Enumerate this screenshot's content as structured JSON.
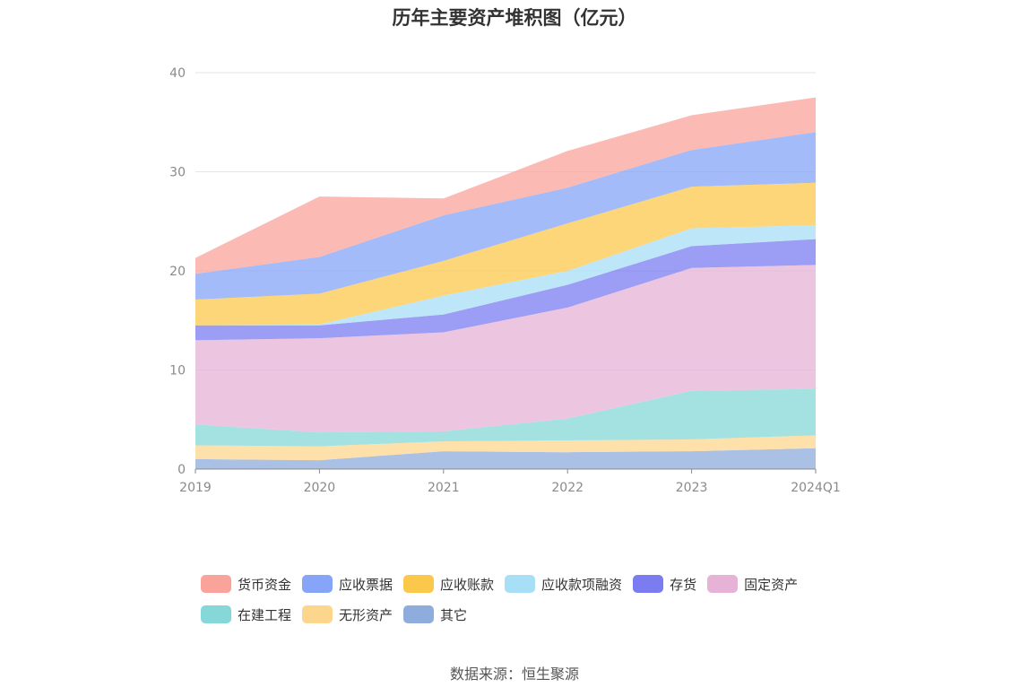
{
  "title": "历年主要资产堆积图（亿元）",
  "source": "数据来源：恒生聚源",
  "chart_data": {
    "type": "area",
    "stacked": true,
    "title": "历年主要资产堆积图（亿元）",
    "categories": [
      "2019",
      "2020",
      "2021",
      "2022",
      "2023",
      "2024Q1"
    ],
    "ylim": [
      0,
      40
    ],
    "yticks": [
      0,
      10,
      20,
      30,
      40
    ],
    "grid": true,
    "legend_position": "bottom",
    "series": [
      {
        "name": "其它",
        "color": "#8eacdc",
        "values": [
          1.0,
          0.9,
          1.8,
          1.7,
          1.8,
          2.1
        ]
      },
      {
        "name": "无形资产",
        "color": "#fdd68e",
        "values": [
          1.4,
          1.4,
          1.0,
          1.2,
          1.2,
          1.3
        ]
      },
      {
        "name": "在建工程",
        "color": "#86d8d8",
        "values": [
          2.1,
          1.4,
          1.0,
          2.2,
          4.9,
          4.7
        ]
      },
      {
        "name": "固定资产",
        "color": "#e6b3d6",
        "values": [
          8.5,
          9.5,
          10.0,
          11.2,
          12.4,
          12.5
        ]
      },
      {
        "name": "存货",
        "color": "#7b7cf0",
        "values": [
          1.5,
          1.3,
          1.8,
          2.3,
          2.2,
          2.6
        ]
      },
      {
        "name": "应收款项融资",
        "color": "#a7dff7",
        "values": [
          0,
          0.1,
          1.9,
          1.4,
          1.8,
          1.4
        ]
      },
      {
        "name": "应收账款",
        "color": "#fbc84c",
        "values": [
          2.6,
          3.1,
          3.5,
          4.8,
          4.2,
          4.3
        ]
      },
      {
        "name": "应收票据",
        "color": "#86a4f8",
        "values": [
          2.6,
          3.7,
          4.6,
          3.6,
          3.7,
          5.1
        ]
      },
      {
        "name": "货币资金",
        "color": "#f9a39b",
        "values": [
          1.6,
          6.1,
          1.7,
          3.7,
          3.5,
          3.5
        ]
      }
    ]
  },
  "legend_order": [
    "货币资金",
    "应收票据",
    "应收账款",
    "应收款项融资",
    "存货",
    "固定资产",
    "在建工程",
    "无形资产",
    "其它"
  ]
}
